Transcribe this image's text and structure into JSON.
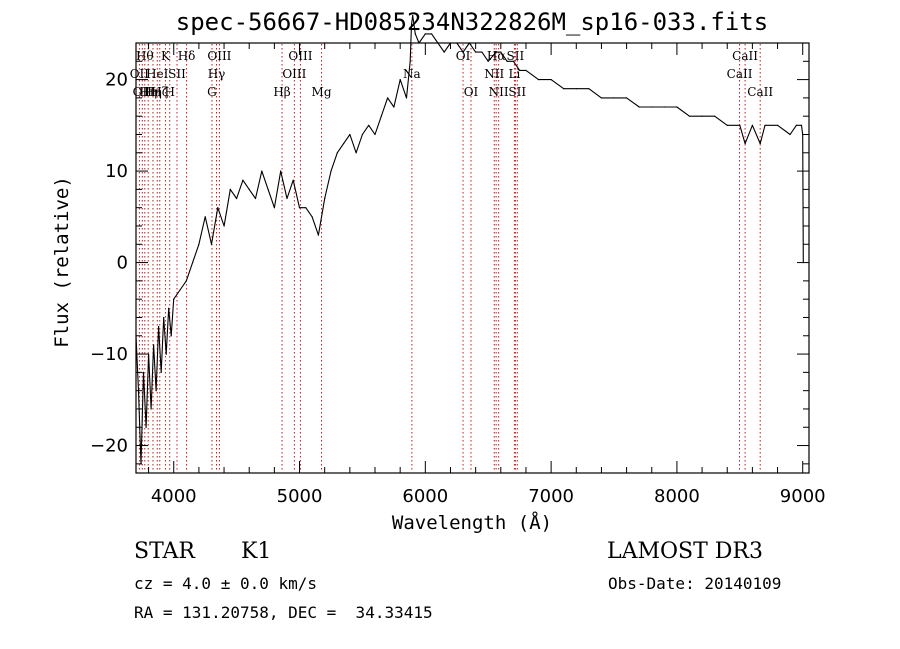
{
  "chart_data": {
    "type": "line",
    "title": "spec-56667-HD085234N322826M_sp16-033.fits",
    "xlabel": "Wavelength (Å)",
    "ylabel": "Flux (relative)",
    "xlim": [
      3700,
      9050
    ],
    "ylim": [
      -23,
      24
    ],
    "x_ticks": [
      4000,
      5000,
      6000,
      7000,
      8000,
      9000
    ],
    "x_tick_labels": [
      "4000",
      "5000",
      "6000",
      "7000",
      "8000",
      "9000"
    ],
    "y_ticks": [
      -20,
      -10,
      0,
      10,
      20
    ],
    "y_tick_labels": [
      "−20",
      "−10",
      "0",
      "10",
      "20"
    ],
    "grid": false,
    "series": [
      {
        "name": "spectrum",
        "color": "#000000",
        "x": [
          3700,
          3720,
          3740,
          3760,
          3780,
          3800,
          3820,
          3840,
          3860,
          3880,
          3900,
          3920,
          3940,
          3960,
          3980,
          4000,
          4050,
          4100,
          4150,
          4200,
          4250,
          4300,
          4350,
          4400,
          4450,
          4500,
          4550,
          4600,
          4650,
          4700,
          4750,
          4800,
          4850,
          4900,
          4950,
          5000,
          5050,
          5100,
          5150,
          5200,
          5250,
          5300,
          5350,
          5400,
          5450,
          5500,
          5550,
          5600,
          5650,
          5700,
          5750,
          5800,
          5850,
          5880,
          5890,
          5900,
          5920,
          5950,
          6000,
          6050,
          6100,
          6150,
          6200,
          6250,
          6300,
          6350,
          6400,
          6450,
          6500,
          6563,
          6600,
          6650,
          6700,
          6750,
          6800,
          6900,
          7000,
          7100,
          7200,
          7300,
          7400,
          7500,
          7600,
          7700,
          7800,
          7900,
          8000,
          8100,
          8200,
          8300,
          8400,
          8500,
          8542,
          8600,
          8662,
          8700,
          8800,
          8900,
          8950,
          8990,
          9000,
          9005
        ],
        "y": [
          -8,
          -14,
          -22,
          -12,
          -18,
          -10,
          -16,
          -9,
          -14,
          -7,
          -12,
          -6,
          -10,
          -5,
          -8,
          -4,
          -3,
          -2,
          0,
          2,
          5,
          2,
          6,
          4,
          8,
          7,
          9,
          8,
          7,
          10,
          8,
          6,
          10,
          7,
          9,
          6,
          6,
          5,
          3,
          7,
          10,
          12,
          13,
          14,
          12,
          14,
          15,
          14,
          16,
          18,
          17,
          20,
          18,
          22,
          26,
          27,
          25,
          24,
          25,
          25,
          24,
          23,
          24,
          24,
          23,
          24,
          23,
          23,
          22,
          23,
          23,
          22,
          22,
          21,
          21,
          20,
          20,
          19,
          19,
          19,
          18,
          18,
          18,
          17,
          17,
          17,
          17,
          16,
          16,
          16,
          15,
          15,
          13,
          15,
          13,
          15,
          15,
          14,
          15,
          15,
          14,
          0
        ]
      }
    ],
    "line_markers": [
      {
        "wavelength": 3727,
        "label": "OII",
        "row": 2
      },
      {
        "wavelength": 3750,
        "label": "OII",
        "row": 3
      },
      {
        "wavelength": 3770,
        "label": "Hθ",
        "row": 1
      },
      {
        "wavelength": 3797,
        "label": "Hη",
        "row": 3
      },
      {
        "wavelength": 3835,
        "label": "Hη",
        "row": 3
      },
      {
        "wavelength": 3869,
        "label": "HeI",
        "row": 2
      },
      {
        "wavelength": 3889,
        "label": "Hζ",
        "row": 3
      },
      {
        "wavelength": 3934,
        "label": "K",
        "row": 1
      },
      {
        "wavelength": 3968,
        "label": "H",
        "row": 3
      },
      {
        "wavelength": 4026,
        "label": "SII",
        "row": 2
      },
      {
        "wavelength": 4102,
        "label": "Hδ",
        "row": 1
      },
      {
        "wavelength": 4304,
        "label": "G",
        "row": 3
      },
      {
        "wavelength": 4340,
        "label": "Hγ",
        "row": 2
      },
      {
        "wavelength": 4363,
        "label": "OIII",
        "row": 1
      },
      {
        "wavelength": 4861,
        "label": "Hβ",
        "row": 3
      },
      {
        "wavelength": 4959,
        "label": "OIII",
        "row": 2
      },
      {
        "wavelength": 5007,
        "label": "OIII",
        "row": 1
      },
      {
        "wavelength": 5175,
        "label": "Mg",
        "row": 3
      },
      {
        "wavelength": 5893,
        "label": "Na",
        "row": 2
      },
      {
        "wavelength": 6300,
        "label": "OI",
        "row": 1
      },
      {
        "wavelength": 6363,
        "label": "OI",
        "row": 3
      },
      {
        "wavelength": 6548,
        "label": "NII",
        "row": 2
      },
      {
        "wavelength": 6563,
        "label": "Hα",
        "row": 1
      },
      {
        "wavelength": 6583,
        "label": "NII",
        "row": 3
      },
      {
        "wavelength": 6708,
        "label": "Li",
        "row": 2
      },
      {
        "wavelength": 6716,
        "label": "SII",
        "row": 1
      },
      {
        "wavelength": 6731,
        "label": "SII",
        "row": 3
      },
      {
        "wavelength": 8498,
        "label": "CaII",
        "row": 2
      },
      {
        "wavelength": 8542,
        "label": "CaII",
        "row": 1
      },
      {
        "wavelength": 8662,
        "label": "CaII",
        "row": 3
      }
    ]
  },
  "footer": {
    "class_label": "STAR",
    "subclass": "K1",
    "survey": "LAMOST DR3",
    "cz": "cz = 4.0 ± 0.0 km/s",
    "obs_date": "Obs-Date: 20140109",
    "coords": "RA = 131.20758, DEC =  34.33415"
  },
  "colors": {
    "marker": "#b22222",
    "axis": "#000000",
    "spectrum": "#000000"
  }
}
